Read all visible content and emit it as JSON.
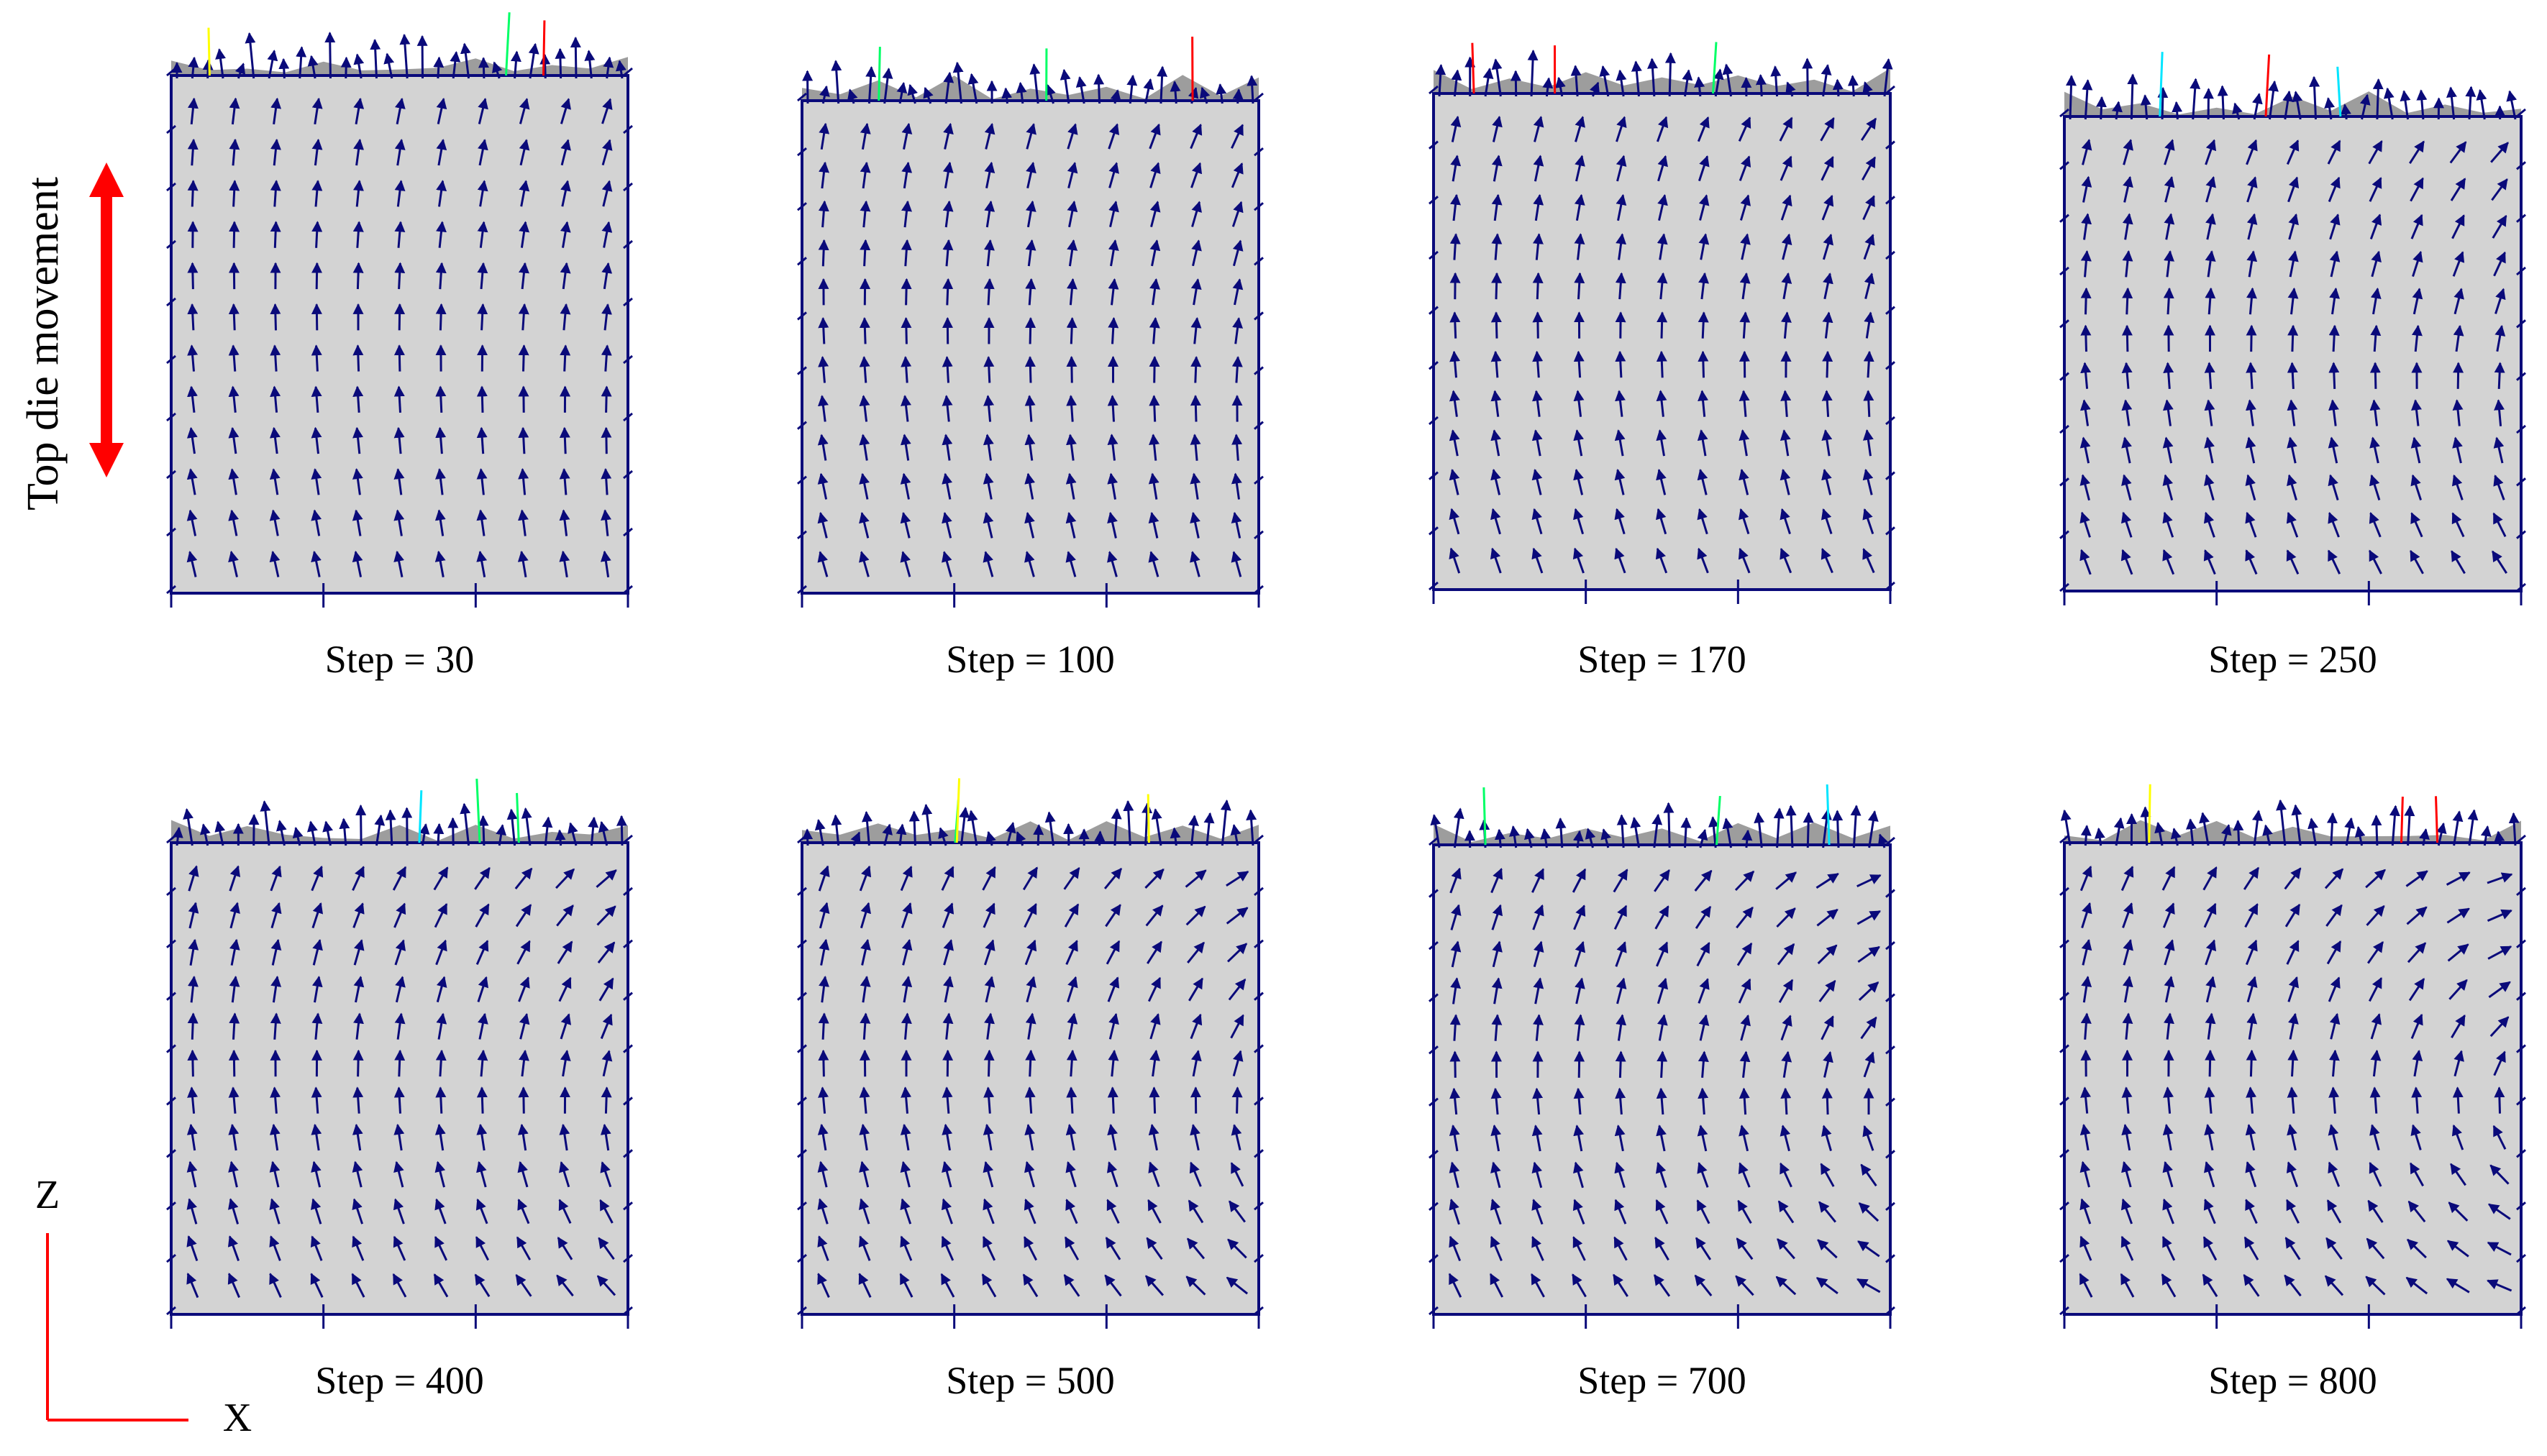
{
  "side_label": "Top die movement",
  "axis": {
    "z_label": "Z",
    "x_label": "X"
  },
  "panels": [
    {
      "caption": "Step = 30",
      "step": 30
    },
    {
      "caption": "Step = 100",
      "step": 100
    },
    {
      "caption": "Step = 170",
      "step": 170
    },
    {
      "caption": "Step = 250",
      "step": 250
    },
    {
      "caption": "Step = 400",
      "step": 400
    },
    {
      "caption": "Step = 500",
      "step": 500
    },
    {
      "caption": "Step = 700",
      "step": 700
    },
    {
      "caption": "Step = 800",
      "step": 800
    }
  ],
  "colors": {
    "billet_fill": "#d3d3d3",
    "vector_color": "#0a0a7a",
    "outline_color": "#0a0a7a",
    "flash_fill": "#8c8c8c",
    "movement_arrow": "#ff0000",
    "axis_color": "#ff0000",
    "hot_vector_colors": [
      "#00e5ff",
      "#ffff00",
      "#ff0000",
      "#00ff66"
    ]
  }
}
